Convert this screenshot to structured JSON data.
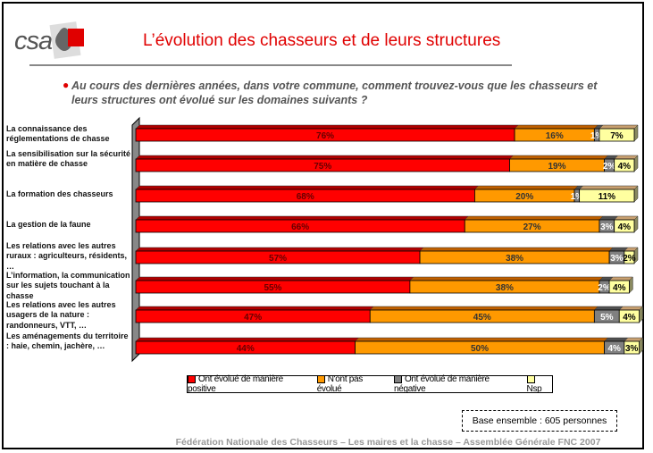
{
  "header": {
    "logo_text": "csa",
    "title": "L’évolution des chasseurs et de leurs structures",
    "question": "Au cours des dernières années, dans votre commune, comment trouvez-vous que les chasseurs et leurs structures ont évolué sur les domaines suivants ?"
  },
  "chart_data": {
    "type": "bar",
    "orientation": "horizontal",
    "stacked": true,
    "unit": "%",
    "xlim": [
      0,
      100
    ],
    "categories": [
      "La connaissance des réglementations de chasse",
      "La sensibilisation sur la sécurité en matière de chasse",
      "La formation des chasseurs",
      "La gestion de la faune",
      "Les relations avec les autres ruraux : agriculteurs, résidents, …",
      "L’information, la communication sur les sujets touchant à la chasse",
      "Les relations avec les autres usagers de la nature : randonneurs, VTT, …",
      "Les aménagements du territoire : haie, chemin, jachère, …"
    ],
    "series": [
      {
        "name": "Ont évolué de manière positive",
        "color": "#ff0000",
        "values": [
          76,
          75,
          68,
          66,
          57,
          55,
          47,
          44
        ]
      },
      {
        "name": "N'ont pas évolué",
        "color": "#ff9900",
        "values": [
          16,
          19,
          20,
          27,
          38,
          38,
          45,
          50
        ]
      },
      {
        "name": "Ont évolué de manière négative",
        "color": "#808080",
        "values": [
          1,
          2,
          1,
          3,
          3,
          2,
          5,
          4
        ]
      },
      {
        "name": "Nsp",
        "color": "#ffffa0",
        "values": [
          7,
          4,
          11,
          4,
          2,
          4,
          4,
          3
        ]
      }
    ],
    "legend_position": "bottom"
  },
  "base_note": "Base ensemble : 605 personnes",
  "footer": "Fédération Nationale des Chasseurs – Les maires et la chasse – Assemblée Générale FNC 2007"
}
